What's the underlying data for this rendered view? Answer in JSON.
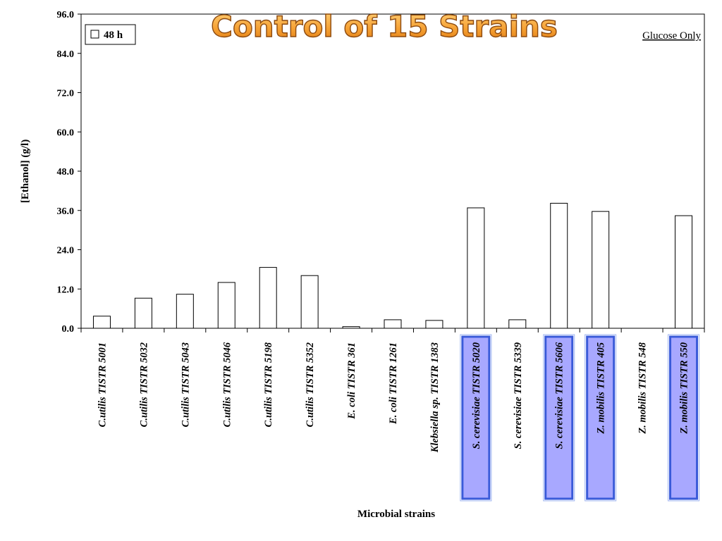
{
  "chart_data": {
    "type": "bar",
    "title": "Control of 15 Strains",
    "note": "Glucose Only",
    "xlabel": "Microbial strains",
    "ylabel": "[Ethanol] (g/l)",
    "ylim": [
      0,
      96
    ],
    "yticks": [
      "0.0",
      "12.0",
      "24.0",
      "36.0",
      "48.0",
      "60.0",
      "72.0",
      "84.0",
      "96.0"
    ],
    "legend": {
      "position": "top-left",
      "entries": [
        "48 h"
      ]
    },
    "grid": false,
    "categories": [
      "C.utilis TISTR 5001",
      "C.utilis TISTR 5032",
      "C.utilis TISTR 5043",
      "C.utilis TISTR 5046",
      "C.utilis TISTR 5198",
      "C.utilis TISTR 5352",
      "E. coli TISTR 361",
      "E. coli TISTR 1261",
      "Klebsiella sp. TISTR 1383",
      "S. cerevisiae TISTR 5020",
      "S. cerevisiae TISTR 5339",
      "S. cerevisiae TISTR 5606",
      "Z. mobilis TISTR 405",
      "Z. mobilis TISTR 548",
      "Z. mobilis TISTR 550"
    ],
    "series": [
      {
        "name": "48 h",
        "values": [
          3.7,
          9.2,
          10.4,
          14.0,
          18.6,
          16.1,
          0.5,
          2.6,
          2.4,
          36.8,
          2.6,
          38.2,
          35.7,
          0.0,
          34.4
        ]
      }
    ],
    "highlighted_categories": [
      9,
      11,
      12,
      14
    ],
    "colors": {
      "title_fill": "#F6A235",
      "title_stroke": "#8C4A10",
      "bar_fill": "#FFFFFF",
      "bar_stroke": "#000000",
      "highlight_fill": "#A8A8FF",
      "highlight_border": "#3A5BD9"
    }
  }
}
